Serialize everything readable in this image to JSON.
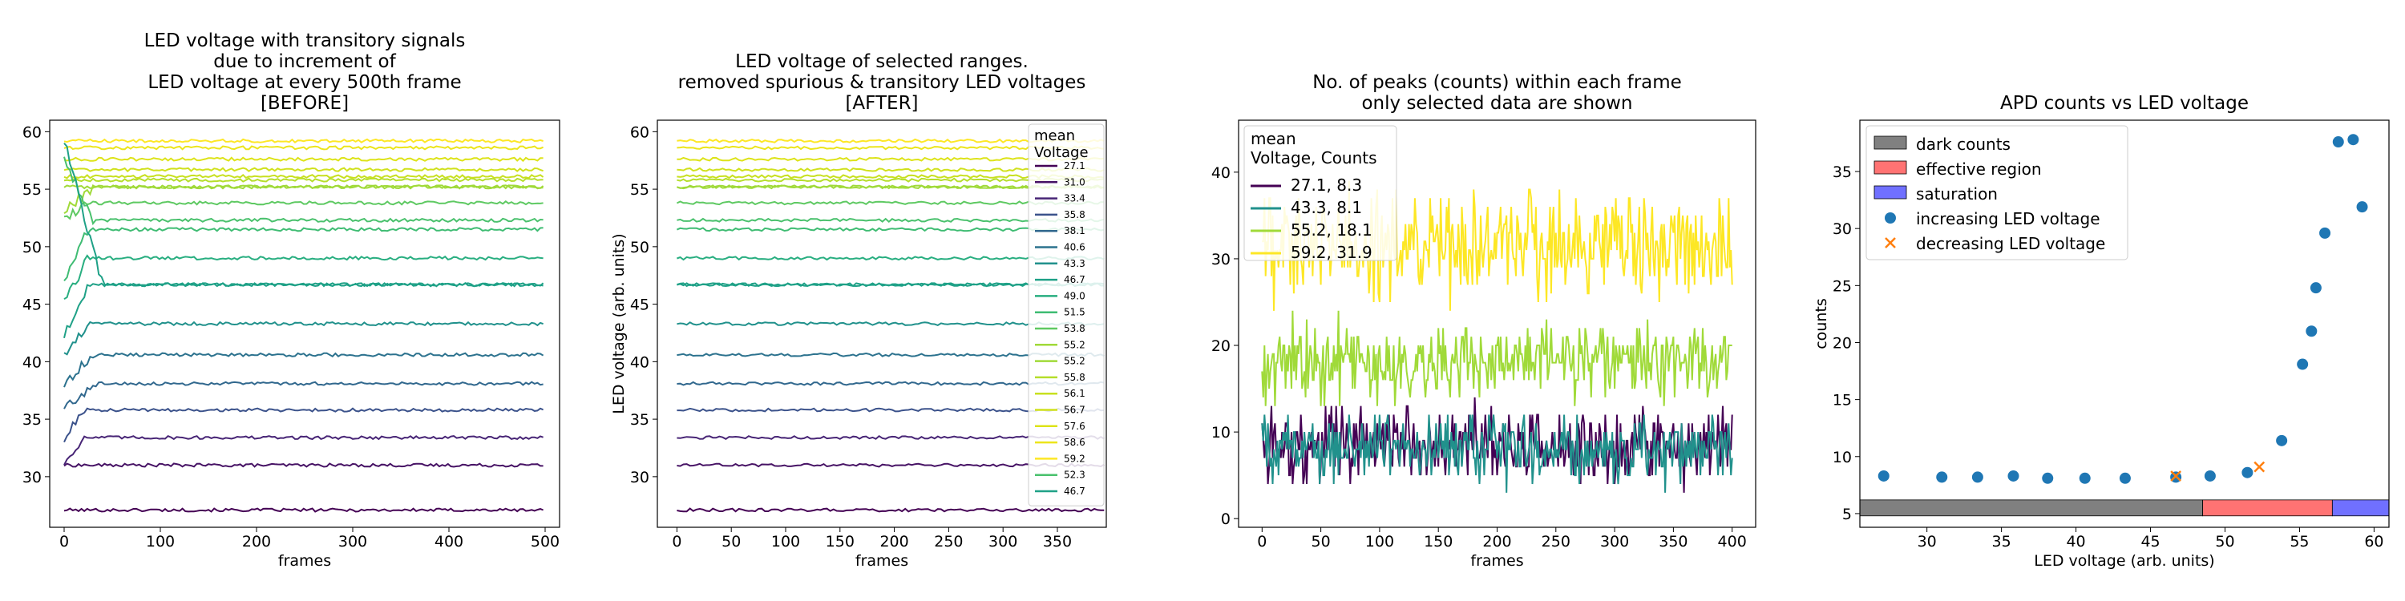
{
  "chart_data": [
    {
      "type": "line",
      "title": [
        "LED voltage with transitory signals",
        "due to increment of",
        "LED voltage at every 500th frame",
        "[BEFORE]"
      ],
      "xlabel": "frames",
      "ylabel": "",
      "xlim": [
        -15,
        515
      ],
      "ylim": [
        25.6,
        61.0
      ],
      "xticks": [
        0,
        100,
        200,
        300,
        400,
        500
      ],
      "yticks": [
        30,
        35,
        40,
        45,
        50,
        55,
        60
      ],
      "series_levels": [
        27.1,
        31.0,
        33.4,
        35.8,
        38.1,
        40.6,
        43.3,
        46.7,
        49.0,
        51.5,
        53.8,
        55.2,
        55.2,
        55.8,
        56.1,
        56.7,
        57.6,
        58.6,
        59.2,
        52.3,
        46.7
      ],
      "series_colors": [
        "#440154",
        "#471365",
        "#482576",
        "#3b528b",
        "#31688e",
        "#2c728e",
        "#21918c",
        "#1fa187",
        "#28ae80",
        "#3fbc73",
        "#5ec962",
        "#a0da39",
        "#a0da39",
        "#b5de2b",
        "#c8e020",
        "#d0e11c",
        "#dde318",
        "#ece51b",
        "#fde725",
        "#4ac16d",
        "#1fa187"
      ],
      "transients": [
        {
          "series": 2,
          "from": 31.0,
          "settle_frame": 20
        },
        {
          "series": 3,
          "from": 33.4,
          "settle_frame": 22
        },
        {
          "series": 4,
          "from": 35.8,
          "settle_frame": 35
        },
        {
          "series": 5,
          "from": 38.1,
          "settle_frame": 30
        },
        {
          "series": 6,
          "from": 40.6,
          "settle_frame": 25
        },
        {
          "series": 7,
          "from": 42.3,
          "settle_frame": 25
        },
        {
          "series": 8,
          "from": 45.2,
          "settle_frame": 25
        },
        {
          "series": 9,
          "from": 47.2,
          "settle_frame": 25
        },
        {
          "series": 10,
          "from": 52.3,
          "settle_frame": 25
        },
        {
          "series": 11,
          "from": 53.0,
          "settle_frame": 30
        },
        {
          "series": 19,
          "from": 57.6,
          "settle_frame": 30
        },
        {
          "series": 20,
          "from": 59.2,
          "settle_frame": 40
        }
      ]
    },
    {
      "type": "line",
      "title": [
        "LED voltage of selected ranges.",
        "removed spurious & transitory LED voltages",
        "[AFTER]"
      ],
      "xlabel": "frames",
      "ylabel": "LED voltage (arb. units)",
      "xlim": [
        -18,
        395
      ],
      "ylim": [
        25.6,
        61.0
      ],
      "xticks": [
        0,
        50,
        100,
        150,
        200,
        250,
        300,
        350
      ],
      "yticks": [
        30,
        35,
        40,
        45,
        50,
        55,
        60
      ],
      "legend_title": [
        "mean",
        "Voltage"
      ],
      "legend_entries": [
        "27.1",
        "31.0",
        "33.4",
        "35.8",
        "38.1",
        "40.6",
        "43.3",
        "46.7",
        "49.0",
        "51.5",
        "53.8",
        "55.2",
        "55.2",
        "55.8",
        "56.1",
        "56.7",
        "57.6",
        "58.6",
        "59.2",
        "52.3",
        "46.7"
      ],
      "legend_position": "right",
      "series_levels": [
        27.1,
        31.0,
        33.4,
        35.8,
        38.1,
        40.6,
        43.3,
        46.7,
        49.0,
        51.5,
        53.8,
        55.2,
        55.2,
        55.8,
        56.1,
        56.7,
        57.6,
        58.6,
        59.2,
        52.3,
        46.7
      ],
      "series_colors": [
        "#440154",
        "#471365",
        "#482576",
        "#3b528b",
        "#31688e",
        "#2c728e",
        "#21918c",
        "#1fa187",
        "#28ae80",
        "#3fbc73",
        "#5ec962",
        "#a0da39",
        "#a0da39",
        "#b5de2b",
        "#c8e020",
        "#d0e11c",
        "#dde318",
        "#ece51b",
        "#fde725",
        "#4ac16d",
        "#1fa187"
      ]
    },
    {
      "type": "line",
      "title": [
        "No. of peaks (counts) within each frame",
        "only selected data are shown"
      ],
      "xlabel": "frames",
      "ylabel": "",
      "xlim": [
        -20,
        420
      ],
      "ylim": [
        -1,
        46
      ],
      "xticks": [
        0,
        50,
        100,
        150,
        200,
        250,
        300,
        350,
        400
      ],
      "yticks": [
        0,
        10,
        20,
        30,
        40
      ],
      "legend_title": [
        "mean",
        "Voltage, Counts"
      ],
      "legend_position": "top-left",
      "series": [
        {
          "name": "27.1, 8.3",
          "mean": 8.3,
          "spread": 3.2,
          "color": "#440154"
        },
        {
          "name": "43.3, 8.1",
          "mean": 8.1,
          "spread": 3.0,
          "color": "#21918c"
        },
        {
          "name": "55.2, 18.1",
          "mean": 18.1,
          "spread": 3.4,
          "color": "#a0da39"
        },
        {
          "name": "59.2, 31.9",
          "mean": 31.9,
          "spread": 4.6,
          "color": "#fde725"
        }
      ]
    },
    {
      "type": "scatter",
      "title": "APD counts vs LED voltage",
      "xlabel": "LED voltage (arb. units)",
      "ylabel": "counts",
      "xlim": [
        25.5,
        61.0
      ],
      "ylim": [
        3.8,
        39.5
      ],
      "xticks": [
        30,
        35,
        40,
        45,
        50,
        55,
        60
      ],
      "yticks": [
        5,
        10,
        15,
        20,
        25,
        30,
        35
      ],
      "legend_position": "top-left",
      "regions": [
        {
          "name": "dark counts",
          "x0": 25.5,
          "x1": 48.5,
          "y0": 4.8,
          "y1": 6.2,
          "color": "#808080"
        },
        {
          "name": "effective region",
          "x0": 48.5,
          "x1": 57.2,
          "y0": 4.8,
          "y1": 6.2,
          "color": "#ff7373"
        },
        {
          "name": "saturation",
          "x0": 57.2,
          "x1": 61.0,
          "y0": 4.8,
          "y1": 6.2,
          "color": "#7070ff"
        }
      ],
      "series": [
        {
          "name": "increasing LED voltage",
          "marker": "circle",
          "color": "#1f77b4",
          "x": [
            27.1,
            31.0,
            33.4,
            35.8,
            38.1,
            40.6,
            43.3,
            46.7,
            49.0,
            51.5,
            53.8,
            55.2,
            55.8,
            56.1,
            56.7,
            57.6,
            58.6,
            59.2
          ],
          "y": [
            8.3,
            8.2,
            8.2,
            8.3,
            8.1,
            8.1,
            8.1,
            8.2,
            8.3,
            8.6,
            11.4,
            18.1,
            21.0,
            24.8,
            29.6,
            37.6,
            37.8,
            31.9
          ]
        },
        {
          "name": "decreasing LED voltage",
          "marker": "x",
          "color": "#ff7f0e",
          "x": [
            46.7,
            52.3
          ],
          "y": [
            8.3,
            9.1
          ]
        }
      ]
    }
  ]
}
